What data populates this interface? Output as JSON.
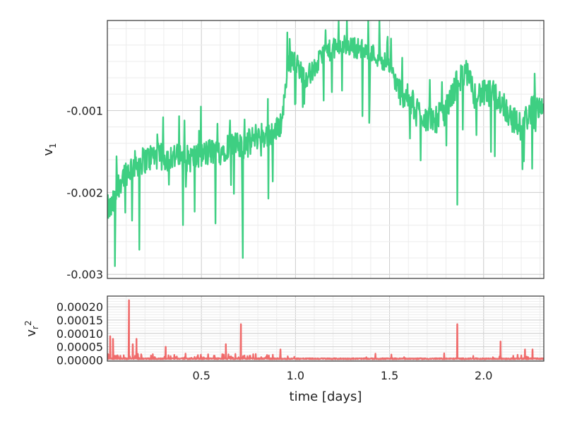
{
  "chart_data": [
    {
      "type": "line",
      "title": "",
      "xlabel": "",
      "ylabel": "v",
      "ylabel_subscript": "1",
      "xlim": [
        0,
        2.32
      ],
      "ylim": [
        -0.00305,
        0.0001
      ],
      "yticks": [
        -0.003,
        -0.002,
        -0.001
      ],
      "ytick_labels": [
        "-0.003",
        "-0.002",
        "-0.001"
      ],
      "grid": true,
      "color": "#3ecf82",
      "series": [
        {
          "x": [
            0,
            0.02,
            0.04,
            0.06,
            0.08,
            0.1,
            0.15,
            0.2,
            0.25,
            0.3,
            0.35,
            0.4,
            0.45,
            0.5,
            0.55,
            0.6,
            0.65,
            0.7,
            0.75,
            0.8,
            0.85,
            0.9,
            0.93,
            0.96,
            1.0,
            1.05,
            1.1,
            1.15,
            1.2,
            1.25,
            1.3,
            1.35,
            1.4,
            1.45,
            1.5,
            1.55,
            1.6,
            1.65,
            1.7,
            1.75,
            1.8,
            1.85,
            1.9,
            1.95,
            2.0,
            2.05,
            2.1,
            2.15,
            2.2,
            2.25,
            2.3,
            2.32
          ],
          "values": [
            -0.0022,
            -0.0022,
            -0.0021,
            -0.0019,
            -0.0018,
            -0.00175,
            -0.00165,
            -0.0016,
            -0.00155,
            -0.00158,
            -0.00155,
            -0.0016,
            -0.00158,
            -0.00155,
            -0.0015,
            -0.0015,
            -0.0014,
            -0.00145,
            -0.0014,
            -0.0013,
            -0.0013,
            -0.00125,
            -0.0011,
            -0.0004,
            -0.0004,
            -0.0006,
            -0.0005,
            -0.0003,
            -0.00025,
            -0.0002,
            -0.00022,
            -0.00025,
            -0.0003,
            -0.00035,
            -0.00045,
            -0.00075,
            -0.00085,
            -0.001,
            -0.0011,
            -0.0011,
            -0.001,
            -0.0007,
            -0.0005,
            -0.0008,
            -0.0008,
            -0.0008,
            -0.0009,
            -0.0011,
            -0.0012,
            -0.001,
            -0.0009,
            -0.001
          ]
        }
      ]
    },
    {
      "type": "line",
      "title": "",
      "xlabel": "time [days]",
      "ylabel": "v",
      "ylabel_subscript": "r",
      "ylabel_superscript": "2",
      "xlim": [
        0,
        2.32
      ],
      "ylim": [
        -4e-06,
        0.00024
      ],
      "xticks": [
        0.5,
        1.0,
        1.5,
        2.0
      ],
      "xtick_labels": [
        "0.5",
        "1.0",
        "1.5",
        "2.0"
      ],
      "yticks": [
        0,
        5e-05,
        0.0001,
        0.00015,
        0.0002
      ],
      "ytick_labels": [
        "0.00000",
        "0.00005",
        "0.00010",
        "0.00015",
        "0.00020"
      ],
      "grid": true,
      "color": "#f06b6b",
      "baseline": 3e-06,
      "spikes": [
        {
          "x": 0.015,
          "value": 9e-05
        },
        {
          "x": 0.03,
          "value": 8e-05
        },
        {
          "x": 0.115,
          "value": 0.000225
        },
        {
          "x": 0.135,
          "value": 6e-05
        },
        {
          "x": 0.155,
          "value": 8e-05
        },
        {
          "x": 0.31,
          "value": 5e-05
        },
        {
          "x": 0.63,
          "value": 6e-05
        },
        {
          "x": 0.71,
          "value": 0.000135
        },
        {
          "x": 0.92,
          "value": 4e-05
        },
        {
          "x": 1.86,
          "value": 0.000135
        },
        {
          "x": 2.09,
          "value": 7e-05
        },
        {
          "x": 2.22,
          "value": 4e-05
        },
        {
          "x": 2.26,
          "value": 4e-05
        }
      ]
    }
  ]
}
